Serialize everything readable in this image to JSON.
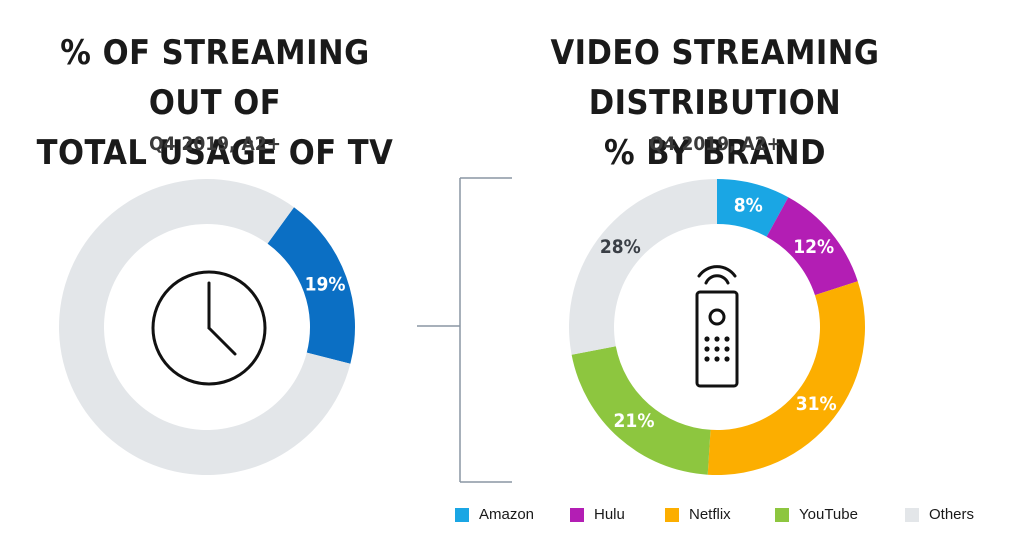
{
  "left_chart": {
    "title_lines": [
      "% OF STREAMING OUT OF",
      "TOTAL USAGE OF TV"
    ],
    "subtitle": "Q4 2019, A2+",
    "icon": "clock-icon"
  },
  "right_chart": {
    "title_lines": [
      "VIDEO STREAMING DISTRIBUTION",
      "% BY BRAND"
    ],
    "subtitle": "Q4 2019, A2+",
    "icon": "tv-remote-icon"
  },
  "colors": {
    "amazon": "#1aa6e4",
    "hulu": "#b31eb4",
    "netflix": "#fcae00",
    "youtube": "#8dc63f",
    "others": "#e3e6e9",
    "streaming": "#0b6fc4"
  },
  "chart_data": [
    {
      "type": "pie",
      "title": "% OF STREAMING OUT OF TOTAL USAGE OF TV",
      "subtitle": "Q4 2019, A2+",
      "slices": [
        {
          "label": "",
          "value": 19,
          "display": "19%",
          "color": "#0b6fc4"
        },
        {
          "label": "",
          "value": 81,
          "display": "",
          "color": "#e3e6e9"
        }
      ]
    },
    {
      "type": "pie",
      "title": "VIDEO STREAMING DISTRIBUTION % BY BRAND",
      "subtitle": "Q4 2019, A2+",
      "legend_position": "bottom",
      "slices": [
        {
          "label": "Amazon",
          "value": 8,
          "display": "8%",
          "color": "#1aa6e4"
        },
        {
          "label": "Hulu",
          "value": 12,
          "display": "12%",
          "color": "#b31eb4"
        },
        {
          "label": "Netflix",
          "value": 31,
          "display": "31%",
          "color": "#fcae00"
        },
        {
          "label": "YouTube",
          "value": 21,
          "display": "21%",
          "color": "#8dc63f"
        },
        {
          "label": "Others",
          "value": 28,
          "display": "28%",
          "color": "#e3e6e9"
        }
      ]
    }
  ]
}
